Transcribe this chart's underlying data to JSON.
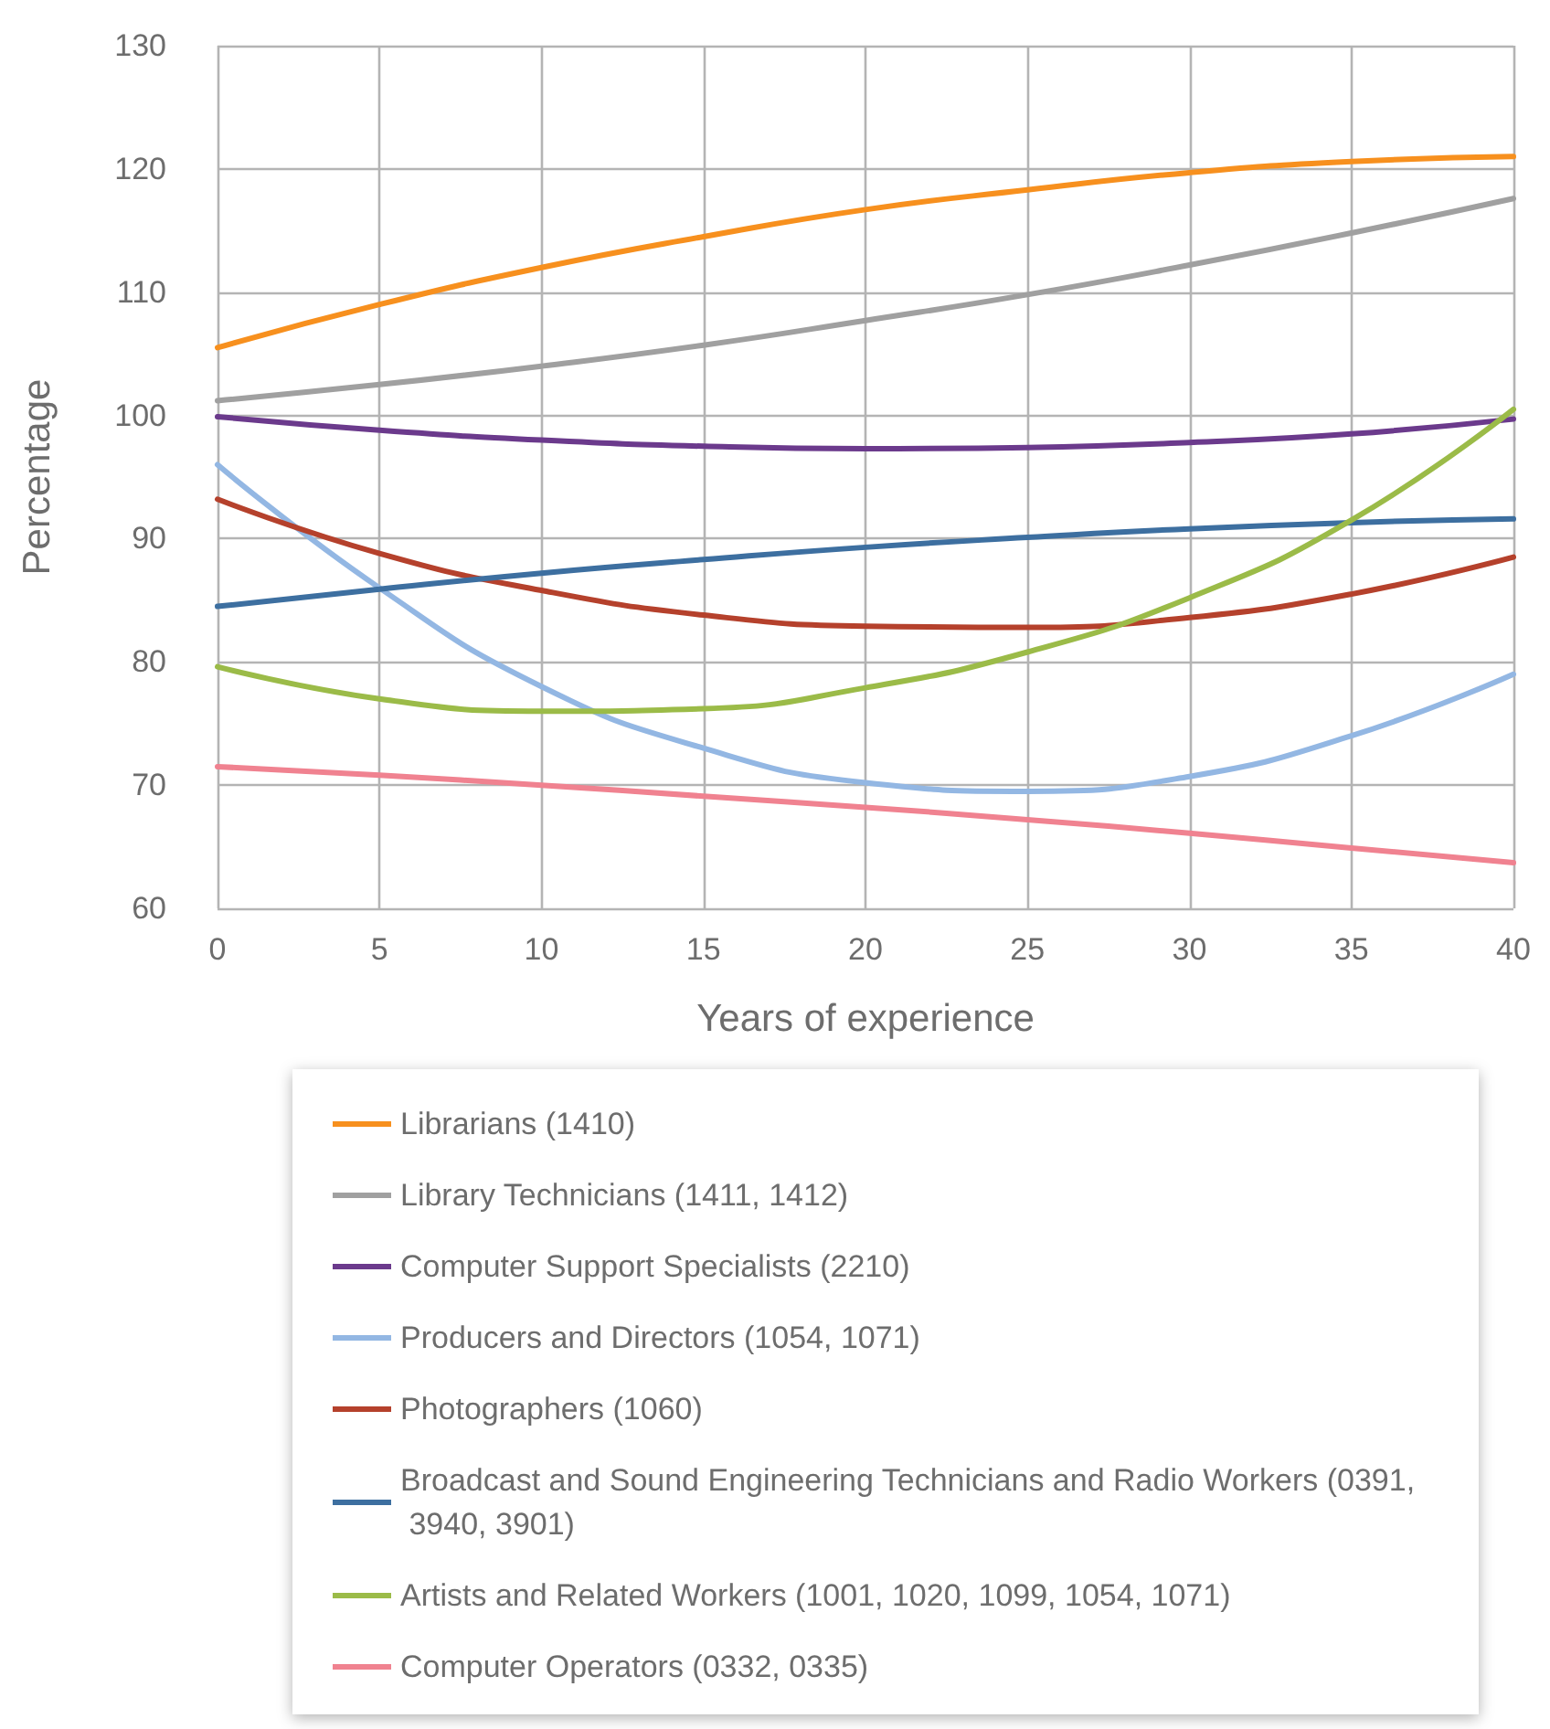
{
  "chart_data": {
    "type": "line",
    "xlabel": "Years of experience",
    "ylabel": "Percentage",
    "x": [
      0,
      5,
      10,
      15,
      20,
      25,
      30,
      35,
      40
    ],
    "xlim": [
      0,
      40
    ],
    "xticks": [
      0,
      5,
      10,
      15,
      20,
      25,
      30,
      35,
      40
    ],
    "ylim": [
      60,
      130
    ],
    "yticks": [
      60,
      70,
      80,
      90,
      100,
      110,
      120,
      130
    ],
    "grid": true,
    "legend": "bottom",
    "marker": "none",
    "line_style": "solid",
    "series": [
      {
        "name": "Librarians (1410)",
        "color": "#f7901e",
        "values": [
          105.5,
          109,
          112,
          114.5,
          116.7,
          118.3,
          119.7,
          120.6,
          121
        ]
      },
      {
        "name": "Library Technicians (1411, 1412)",
        "color": "#a0a0a0",
        "values": [
          101.2,
          102.5,
          104,
          105.7,
          107.7,
          109.8,
          112.2,
          114.8,
          117.6
        ]
      },
      {
        "name": "Computer Support Specialists (2210)",
        "color": "#6b3a8c",
        "values": [
          99.9,
          98.8,
          98,
          97.5,
          97.3,
          97.4,
          97.8,
          98.5,
          99.7
        ]
      },
      {
        "name": "Producers and Directors (1054, 1071)",
        "color": "#93b7e3",
        "values": [
          96,
          86,
          78,
          73,
          70.2,
          69.5,
          70.7,
          74,
          79
        ]
      },
      {
        "name": "Photographers (1060)",
        "color": "#b5412c",
        "values": [
          93.2,
          88.8,
          85.8,
          83.8,
          82.9,
          82.8,
          83.6,
          85.5,
          88.5
        ]
      },
      {
        "name": "Broadcast and Sound Engineering Technicians and Radio Workers (0391, 3940, 3901)",
        "color": "#3d6fa0",
        "values": [
          84.5,
          85.9,
          87.2,
          88.3,
          89.3,
          90.1,
          90.8,
          91.3,
          91.6
        ]
      },
      {
        "name": "Artists and Related Workers (1001, 1020, 1099, 1054, 1071)",
        "color": "#9bbb48",
        "values": [
          79.6,
          77,
          76,
          76.2,
          77.9,
          80.8,
          85.2,
          91.5,
          100.5
        ]
      },
      {
        "name": "Computer Operators (0332, 0335)",
        "color": "#f08290",
        "values": [
          71.5,
          70.8,
          70,
          69.1,
          68.2,
          67.2,
          66.1,
          64.9,
          63.7
        ]
      }
    ]
  }
}
